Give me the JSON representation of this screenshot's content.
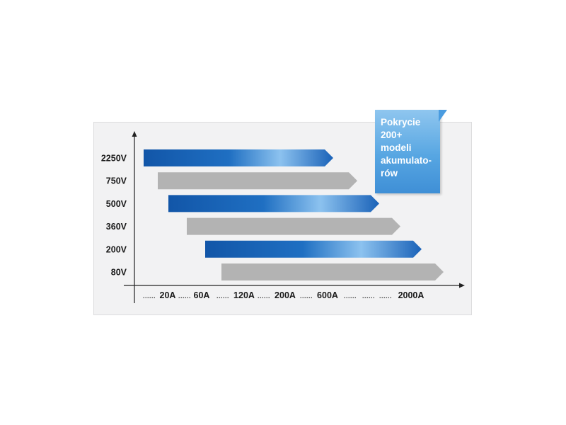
{
  "chart_data": {
    "type": "bar",
    "orientation": "horizontal",
    "categories": [
      "2250V",
      "750V",
      "500V",
      "360V",
      "200V",
      "80V"
    ],
    "x_tick_labels": [
      "20A",
      "60A",
      "120A",
      "200A",
      "600A",
      "2000A"
    ],
    "series": [
      {
        "values": [
          {
            "start": "10A",
            "end": "600A"
          },
          {
            "start": "15A",
            "end": "1200A"
          },
          {
            "start": "20A",
            "end": "1300A"
          },
          {
            "start": "30A",
            "end": "1400A"
          },
          {
            "start": "40A",
            "end": "1500A"
          },
          {
            "start": "50A",
            "end": "2000A"
          }
        ]
      }
    ],
    "bar_colors": [
      "#1f6fc2",
      "#b3b3b3",
      "#1f6fc2",
      "#b3b3b3",
      "#1f6fc2",
      "#b3b3b3"
    ],
    "grid": false,
    "legend": "none"
  },
  "badge": {
    "text": "Pokrycie\n200+\nmodeli\nakumulato-\nrów"
  },
  "colors": {
    "blue_bar_dark": "#1256a8",
    "blue_bar_light": "#8cc2ef",
    "gray_bar": "#b3b3b3",
    "badge_blue": "#57a6e2",
    "panel_bg": "#f2f2f3"
  }
}
